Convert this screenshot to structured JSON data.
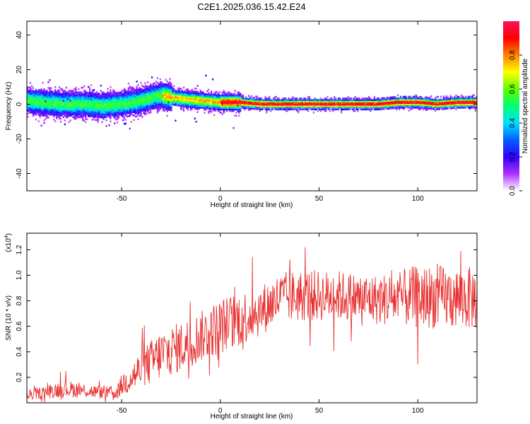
{
  "title": "C2E1.2025.036.15.42.E24",
  "chart_data": [
    {
      "type": "heatmap",
      "title": "C2E1.2025.036.15.42.E24",
      "xlabel": "Height of straight line (km)",
      "ylabel": "Frequency (Hz)",
      "xlim": [
        -98,
        130
      ],
      "ylim": [
        -50,
        48
      ],
      "x_ticks": [
        -50,
        0,
        50,
        100
      ],
      "y_ticks": [
        -40,
        -20,
        0,
        20,
        40
      ],
      "colorbar": {
        "label": "Normalized spectral amplitude",
        "range": [
          0,
          1
        ],
        "ticks": [
          "0.0",
          "0.2",
          "0.4",
          "0.6",
          "0.8"
        ],
        "colors": [
          "#ffffff",
          "#b030ff",
          "#3000ff",
          "#0060ff",
          "#00e0ff",
          "#00ff70",
          "#60ff00",
          "#ffff00",
          "#ff8000",
          "#ff0000",
          "#ff1060"
        ]
      },
      "ridge": {
        "x": [
          -98,
          -90,
          -80,
          -70,
          -60,
          -50,
          -45,
          -40,
          -35,
          -30,
          -25,
          -20,
          -10,
          0,
          10,
          20,
          30,
          40,
          50,
          60,
          70,
          80,
          90,
          95,
          100,
          110,
          120,
          130
        ],
        "y": [
          2,
          1,
          0,
          0,
          -1,
          0,
          1,
          2,
          4,
          5,
          4,
          3,
          2,
          1,
          1,
          0,
          0,
          0,
          0,
          0,
          0,
          0,
          1,
          1,
          1,
          0,
          1,
          1
        ]
      }
    },
    {
      "type": "line",
      "xlabel": "Height of straight line (km)",
      "ylabel": "SNR (10 * v/v)",
      "y_multiplier": "(x10",
      "y_multiplier_exp": "4",
      "y_multiplier_close": ")",
      "xlim": [
        -98,
        130
      ],
      "ylim": [
        0,
        1.33
      ],
      "x_ticks": [
        -50,
        0,
        50,
        100
      ],
      "y_ticks": [
        0.2,
        0.4,
        0.6,
        0.8,
        1.0,
        1.2
      ],
      "y_tick_labels": [
        "0.2",
        "0.4",
        "0.6",
        "0.8",
        "1.0",
        "1.2"
      ],
      "series_color": "#e83232",
      "series": [
        {
          "x": [
            -98,
            -90,
            -80,
            -70,
            -60,
            -52,
            -50,
            -40,
            -30,
            -20,
            -10,
            0,
            10,
            20,
            30,
            40,
            50,
            60,
            70,
            80,
            90,
            100,
            110,
            120,
            130
          ],
          "mean": [
            0.06,
            0.08,
            0.11,
            0.1,
            0.08,
            0.08,
            0.14,
            0.26,
            0.38,
            0.44,
            0.52,
            0.6,
            0.66,
            0.72,
            0.82,
            0.84,
            0.84,
            0.84,
            0.82,
            0.81,
            0.82,
            0.83,
            0.83,
            0.82,
            0.82
          ],
          "spread": [
            0.04,
            0.05,
            0.07,
            0.06,
            0.05,
            0.05,
            0.09,
            0.16,
            0.2,
            0.2,
            0.2,
            0.22,
            0.22,
            0.2,
            0.2,
            0.21,
            0.2,
            0.2,
            0.2,
            0.2,
            0.22,
            0.25,
            0.25,
            0.25,
            0.25
          ]
        }
      ]
    }
  ]
}
